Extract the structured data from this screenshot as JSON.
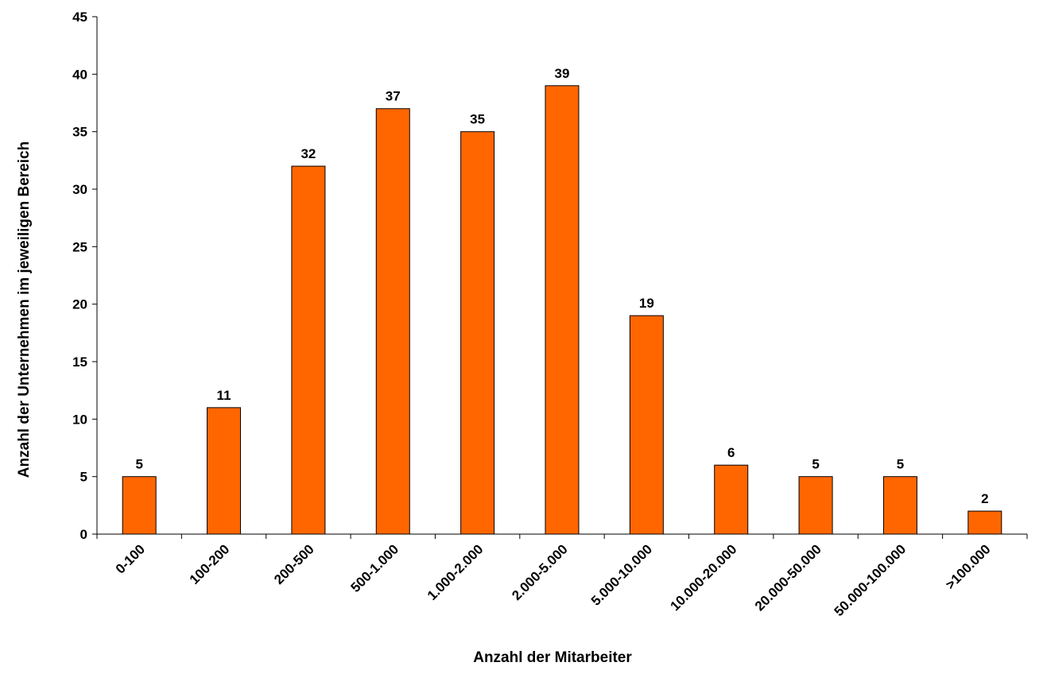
{
  "chart_data": {
    "type": "bar",
    "title": "",
    "xlabel": "Anzahl der Mitarbeiter",
    "ylabel": "Anzahl der Unternehmen im jeweiligen Bereich",
    "categories": [
      "0-100",
      "100-200",
      "200-500",
      "500-1.000",
      "1.000-2.000",
      "2.000-5.000",
      "5.000-10.000",
      "10.000-20.000",
      "20.000-50.000",
      "50.000-100.000",
      ">100.000"
    ],
    "values": [
      5,
      11,
      32,
      37,
      35,
      39,
      19,
      6,
      5,
      5,
      2
    ],
    "data_labels": [
      "5",
      "11",
      "32",
      "37",
      "35",
      "39",
      "19",
      "6",
      "5",
      "5",
      "2"
    ],
    "ylim": [
      0,
      45
    ],
    "yticks": [
      0,
      5,
      10,
      15,
      20,
      25,
      30,
      35,
      40,
      45
    ],
    "ytick_labels": [
      "0",
      "5",
      "10",
      "15",
      "20",
      "25",
      "30",
      "35",
      "40",
      "45"
    ],
    "grid": false,
    "legend": "none",
    "bar_color": "#FF6600"
  }
}
